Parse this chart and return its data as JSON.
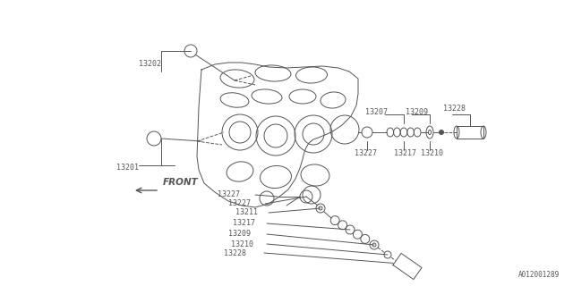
{
  "bg_color": "#ffffff",
  "line_color": "#555555",
  "text_color": "#555555",
  "watermark": "A012001289",
  "front_label": "FRONT",
  "figsize": [
    6.4,
    3.2
  ],
  "dpi": 100
}
